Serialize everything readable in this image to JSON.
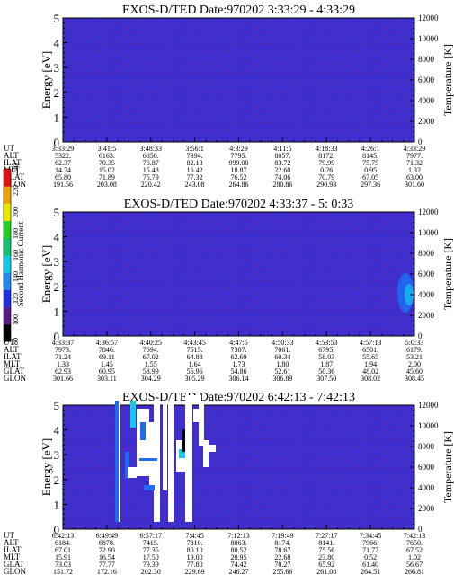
{
  "panels": [
    {
      "title": "EXOS-D/TED   Date:970202  3:33:29 - 4:33:29",
      "ylabel_left": "Energy [eV]",
      "ylabel_right": "Temperature [K]",
      "y_ticks": [
        "0",
        "1",
        "2",
        "3",
        "4",
        "5"
      ],
      "t_ticks": [
        "0",
        "2000",
        "4000",
        "6000",
        "8000",
        "10000",
        "12000"
      ],
      "row_labels": [
        "UT",
        "ALT",
        "ILAT",
        "MLT",
        "GLAT",
        "GLON"
      ],
      "columns": [
        [
          "3:33:29",
          "5322.",
          "62.37",
          "14.74",
          "65.80",
          "191.56"
        ],
        [
          "3:41:5",
          "6163.",
          "70.35",
          "15.02",
          "71.89",
          "203.08"
        ],
        [
          "3:48:33",
          "6850.",
          "76.87",
          "15.48",
          "75.79",
          "220.42"
        ],
        [
          "3:56:1",
          "7394.",
          "82.13",
          "16.42",
          "77.32",
          "243.08"
        ],
        [
          "4:3:29",
          "7795.",
          "999.00",
          "18.87",
          "76.52",
          "264.86"
        ],
        [
          "4:11:5",
          "8057.",
          "83.72",
          "22.60",
          "74.06",
          "280.86"
        ],
        [
          "4:18:33",
          "8172.",
          "79.99",
          "0.26",
          "70.79",
          "290.93"
        ],
        [
          "4:26:1",
          "8145.",
          "75.75",
          "0.95",
          "67.05",
          "297.36"
        ],
        [
          "4:33:29",
          "7977.",
          "71.32",
          "1.32",
          "63.00",
          "301.60"
        ]
      ]
    },
    {
      "title": "EXOS-D/TED   Date:970202  4:33:37 - 5: 0:33",
      "ylabel_left": "Energy [eV]",
      "ylabel_right": "Temperature [K]",
      "y_ticks": [
        "0",
        "1",
        "2",
        "3",
        "4",
        "5"
      ],
      "t_ticks": [
        "0",
        "2000",
        "4000",
        "6000",
        "8000",
        "10000",
        "12000"
      ],
      "row_labels": [
        "UT",
        "ALT",
        "ILAT",
        "MLT",
        "GLAT",
        "GLON"
      ],
      "columns": [
        [
          "4:33:37",
          "7973.",
          "71.24",
          "1.33",
          "62.93",
          "301.66"
        ],
        [
          "4:36:57",
          "7846.",
          "69.11",
          "1.45",
          "60.95",
          "303.11"
        ],
        [
          "4:40:25",
          "7694.",
          "67.02",
          "1.55",
          "58.99",
          "304.29"
        ],
        [
          "4:43:45",
          "7515.",
          "64.88",
          "1.64",
          "56.96",
          "305.29"
        ],
        [
          "4:47:5",
          "7307.",
          "62.69",
          "1.73",
          "54.86",
          "306.14"
        ],
        [
          "4:50:33",
          "7061.",
          "60.34",
          "1.80",
          "52.61",
          "306.89"
        ],
        [
          "4:53:53",
          "6795.",
          "58.03",
          "1.87",
          "50.36",
          "307.50"
        ],
        [
          "4:57:13",
          "6501.",
          "55.65",
          "1.94",
          "48.02",
          "308.02"
        ],
        [
          "5:0:33",
          "6179.",
          "53.21",
          "2.00",
          "45.60",
          "308.45"
        ]
      ]
    },
    {
      "title": "EXOS-D/TED   Date:970202  6:42:13 - 7:42:13",
      "ylabel_left": "Energy [eV]",
      "ylabel_right": "Temperature [K]",
      "y_ticks": [
        "0",
        "1",
        "2",
        "3",
        "4",
        "5"
      ],
      "t_ticks": [
        "0",
        "2000",
        "4000",
        "6000",
        "8000",
        "10000",
        "12000"
      ],
      "row_labels": [
        "UT",
        "ALT",
        "ILAT",
        "MLT",
        "GLAT",
        "GLON"
      ],
      "columns": [
        [
          "6:42:13",
          "6184.",
          "67.01",
          "15.91",
          "73.03",
          "151.72"
        ],
        [
          "6:49:49",
          "6878.",
          "72.90",
          "16.54",
          "77.77",
          "172.16"
        ],
        [
          "6:57:17",
          "7415.",
          "77.35",
          "17.50",
          "79.39",
          "202.30"
        ],
        [
          "7:4:45",
          "7810.",
          "80.10",
          "19.00",
          "77.80",
          "229.69"
        ],
        [
          "7:12:13",
          "8063.",
          "80.52",
          "20.95",
          "74.42",
          "246.27"
        ],
        [
          "7:19:49",
          "8174.",
          "78.67",
          "22.68",
          "70.27",
          "255.66"
        ],
        [
          "7:27:17",
          "8141.",
          "75.56",
          "23.80",
          "65.92",
          "261.08"
        ],
        [
          "7:34:45",
          "7966.",
          "71.77",
          "0.52",
          "61.40",
          "264.51"
        ],
        [
          "7:42:13",
          "7650.",
          "67.52",
          "1.02",
          "56.67",
          "266.81"
        ]
      ]
    }
  ],
  "colorbar": {
    "label": "Second Harmonic Current",
    "ticks": [
      "80",
      "100",
      "120",
      "140",
      "160",
      "180",
      "200",
      "220",
      "240"
    ]
  },
  "colors": {
    "background": "#3a2fd0",
    "speckle": "#8a1f86",
    "blue": "#1f6cf0",
    "cyan": "#14c8e8",
    "white": "#ffffff"
  },
  "chart_data": [
    {
      "type": "heatmap",
      "title": "EXOS-D/TED   Date:970202  3:33:29 - 4:33:29",
      "xlabel": "UT",
      "ylabel": "Energy [eV]",
      "ylim": [
        0,
        5
      ],
      "y2label": "Temperature [K]",
      "y2lim": [
        0,
        12000
      ],
      "colorbar_range": [
        80,
        240
      ],
      "grid": false
    },
    {
      "type": "heatmap",
      "title": "EXOS-D/TED   Date:970202  4:33:37 - 5: 0:33",
      "xlabel": "UT",
      "ylabel": "Energy [eV]",
      "ylim": [
        0,
        5
      ],
      "y2label": "Temperature [K]",
      "y2lim": [
        0,
        12000
      ],
      "colorbar_range": [
        80,
        240
      ],
      "grid": false
    },
    {
      "type": "heatmap",
      "title": "EXOS-D/TED   Date:970202  6:42:13 - 7:42:13",
      "xlabel": "UT",
      "ylabel": "Energy [eV]",
      "ylim": [
        0,
        5
      ],
      "y2label": "Temperature [K]",
      "y2lim": [
        0,
        12000
      ],
      "colorbar_range": [
        80,
        240
      ],
      "grid": false
    }
  ]
}
